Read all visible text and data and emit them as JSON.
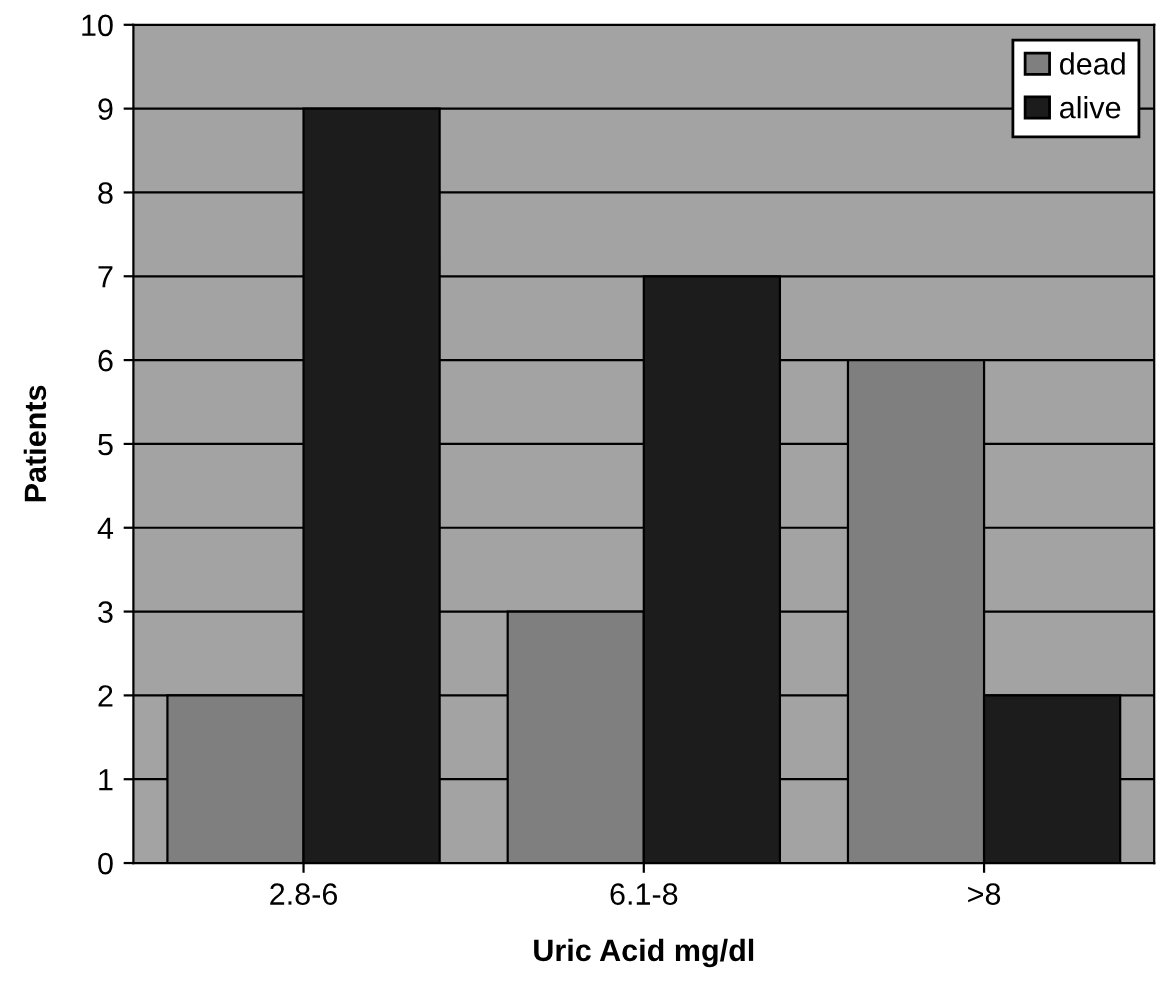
{
  "chart_data": {
    "type": "bar",
    "xlabel": "Uric Acid mg/dl",
    "ylabel": "Patients",
    "categories": [
      "2.8-6",
      "6.1-8",
      ">8"
    ],
    "series": [
      {
        "name": "dead",
        "color": "#7f7f7f",
        "values": [
          2,
          3,
          6
        ]
      },
      {
        "name": "alive",
        "color": "#1c1c1c",
        "values": [
          9,
          7,
          2
        ]
      }
    ],
    "ylim": [
      0,
      10
    ],
    "yticks": [
      0,
      1,
      2,
      3,
      4,
      5,
      6,
      7,
      8,
      9,
      10
    ],
    "grid": "y",
    "legend": "top right"
  }
}
